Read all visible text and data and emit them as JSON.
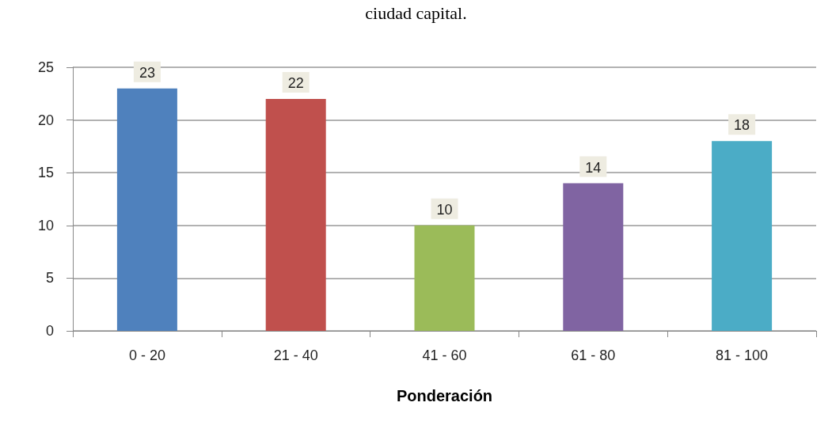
{
  "chart_data": {
    "type": "bar",
    "title": "ciudad capital.",
    "xlabel": "Ponderación",
    "categories": [
      "0 - 20",
      "21 - 40",
      "41 - 60",
      "61 - 80",
      "81 - 100"
    ],
    "values": [
      23,
      22,
      10,
      14,
      18
    ],
    "colors": [
      "#4f81bd",
      "#c0504d",
      "#9bbb59",
      "#8064a2",
      "#4bacc6"
    ],
    "ylim": [
      0,
      25
    ],
    "yticks": [
      0,
      5,
      10,
      15,
      20,
      25
    ],
    "grid": "y",
    "data_labels": true
  }
}
